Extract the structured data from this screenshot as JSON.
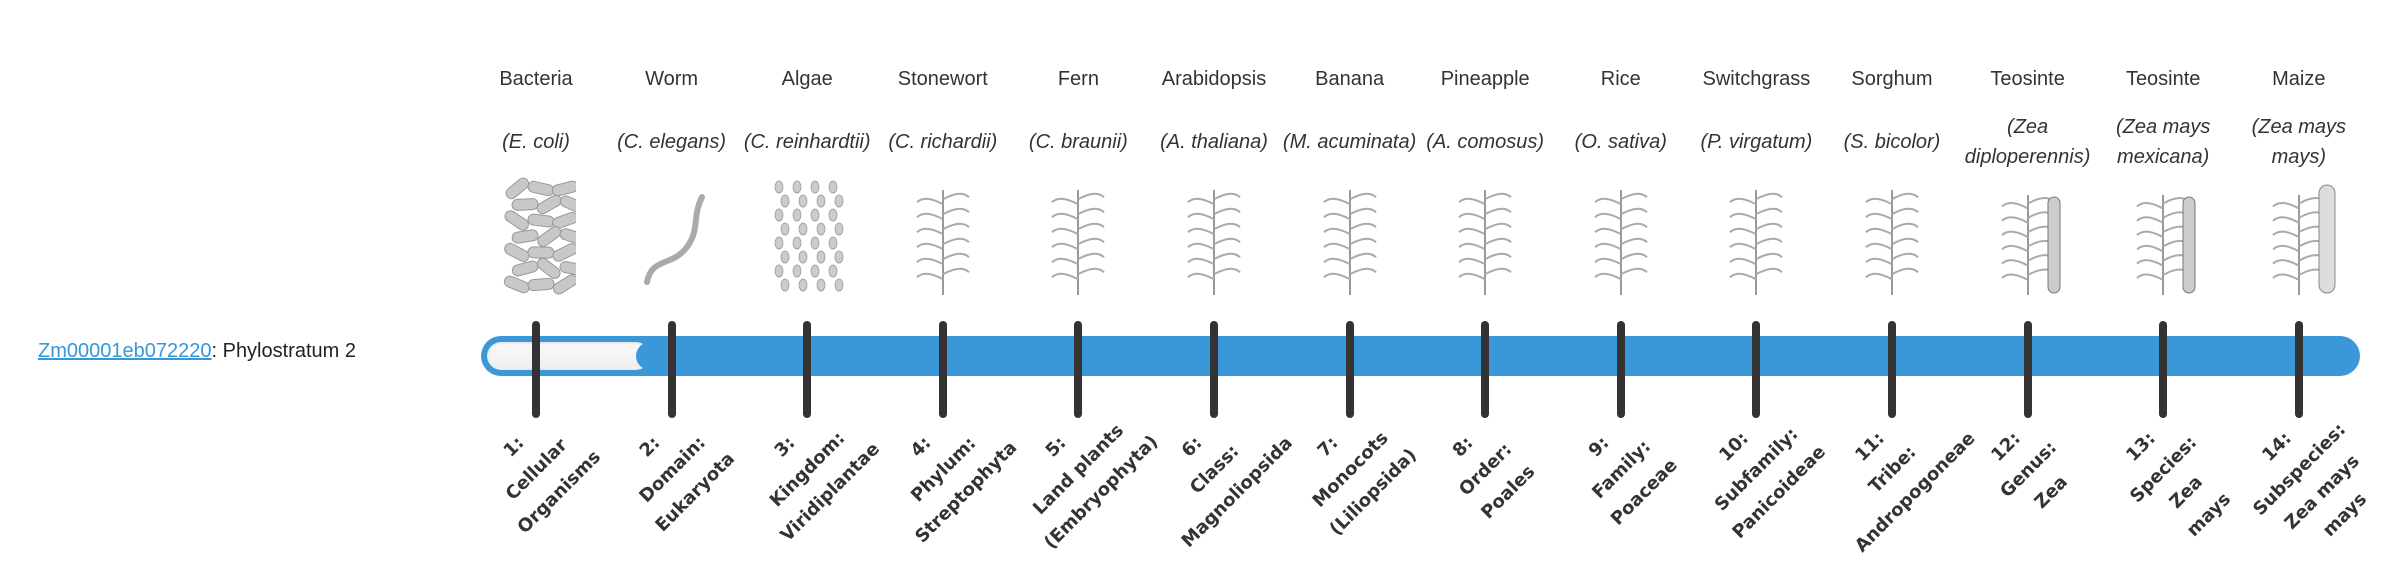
{
  "gene": {
    "id": "Zm00001eb072220",
    "suffix": ": Phylostratum 2"
  },
  "progress": {
    "current_stratum": 2,
    "total_strata": 14
  },
  "colors": {
    "accent": "#3a98d9",
    "link": "#3498db",
    "tick": "#333333",
    "text": "#333333"
  },
  "organisms": [
    {
      "common": "Bacteria",
      "species": "(E. coli)",
      "icon": "bacteria-illustration"
    },
    {
      "common": "Worm",
      "species": "(C. elegans)",
      "icon": "worm-illustration"
    },
    {
      "common": "Algae",
      "species": "(C. reinhardtii)",
      "icon": "algae-illustration"
    },
    {
      "common": "Stonewort",
      "species": "(C. richardii)",
      "icon": "stonewort-illustration"
    },
    {
      "common": "Fern",
      "species": "(C. braunii)",
      "icon": "fern-illustration"
    },
    {
      "common": "Arabidopsis",
      "species": "(A. thaliana)",
      "icon": "arabidopsis-illustration"
    },
    {
      "common": "Banana",
      "species": "(M. acuminata)",
      "icon": "banana-illustration"
    },
    {
      "common": "Pineapple",
      "species": "(A. comosus)",
      "icon": "pineapple-illustration"
    },
    {
      "common": "Rice",
      "species": "(O. sativa)",
      "icon": "rice-illustration"
    },
    {
      "common": "Switchgrass",
      "species": "(P. virgatum)",
      "icon": "switchgrass-illustration"
    },
    {
      "common": "Sorghum",
      "species": "(S. bicolor)",
      "icon": "sorghum-illustration"
    },
    {
      "common": "Teosinte",
      "species": "(Zea diploperennis)",
      "icon": "teosinte-illustration"
    },
    {
      "common": "Teosinte",
      "species": "(Zea mays mexicana)",
      "icon": "teosinte-illustration"
    },
    {
      "common": "Maize",
      "species": "(Zea mays mays)",
      "icon": "maize-illustration"
    }
  ],
  "strata": [
    {
      "lines": [
        "1:",
        "Cellular",
        "Organisms"
      ]
    },
    {
      "lines": [
        "2:",
        "Domain:",
        "Eukaryota"
      ]
    },
    {
      "lines": [
        "3:",
        "Kingdom:",
        "Viridiplantae"
      ]
    },
    {
      "lines": [
        "4:",
        "Phylum:",
        "Streptophyta"
      ]
    },
    {
      "lines": [
        "5:",
        "Land plants",
        "(Embryophyta)"
      ]
    },
    {
      "lines": [
        "6:",
        "Class:",
        "Magnoliopsida"
      ]
    },
    {
      "lines": [
        "7:",
        "Monocots",
        "(Liliopsida)"
      ]
    },
    {
      "lines": [
        "8:",
        "Order:",
        "Poales"
      ]
    },
    {
      "lines": [
        "9:",
        "Family:",
        "Poaceae"
      ]
    },
    {
      "lines": [
        "10:",
        "Subfamily:",
        "Panicoideae"
      ]
    },
    {
      "lines": [
        "11:",
        "Tribe:",
        "Andropogoneae"
      ]
    },
    {
      "lines": [
        "12:",
        "Genus:",
        "Zea"
      ]
    },
    {
      "lines": [
        "13:",
        "Species:",
        "Zea",
        "mays"
      ]
    },
    {
      "lines": [
        "14:",
        "Subspecies:",
        "Zea mays",
        "mays"
      ]
    }
  ]
}
